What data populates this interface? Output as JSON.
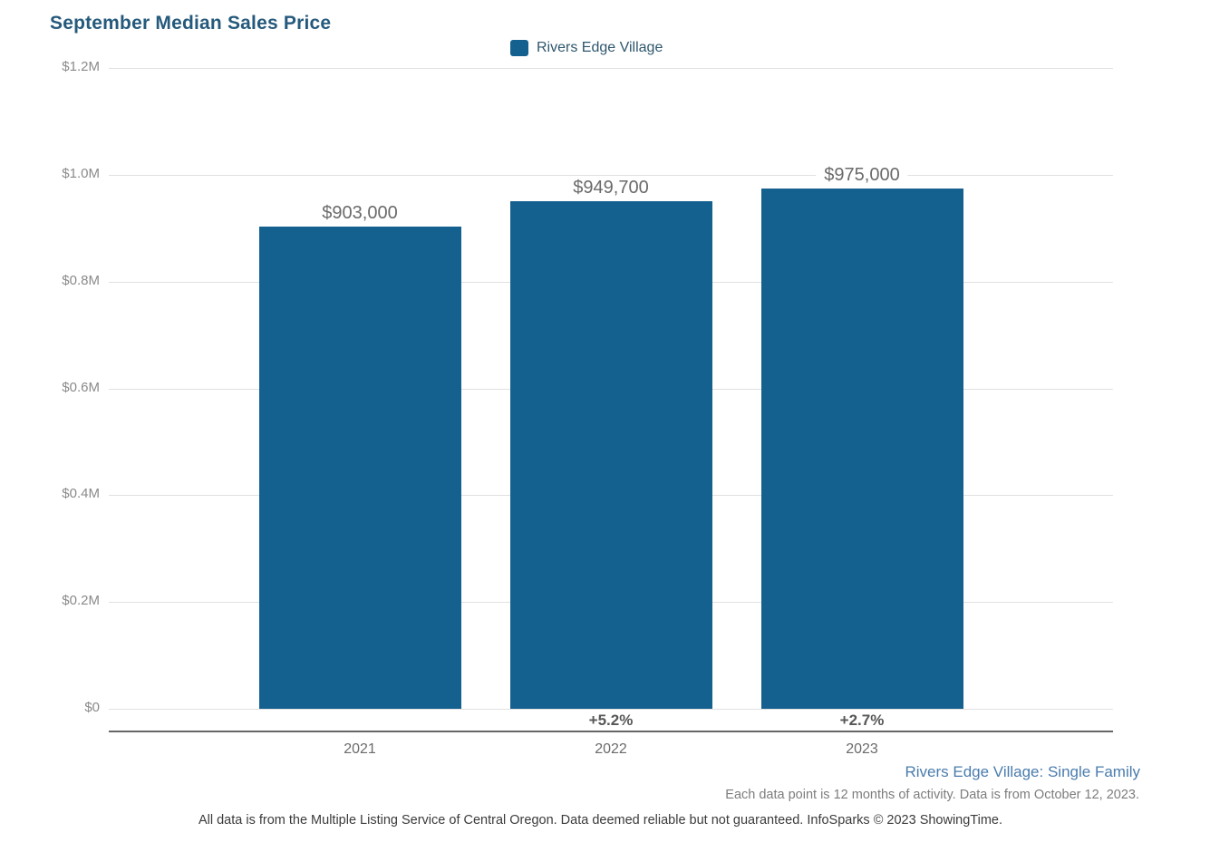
{
  "page": {
    "title": "September Median Sales Price"
  },
  "legend": {
    "label": "Rivers Edge Village",
    "swatch_color": "#14608f"
  },
  "chart_data": {
    "type": "bar",
    "title": "September Median Sales Price",
    "categories": [
      "2021",
      "2022",
      "2023"
    ],
    "series": [
      {
        "name": "Rivers Edge Village",
        "color": "#14608f",
        "values": [
          903000,
          949700,
          975000
        ]
      }
    ],
    "value_labels": [
      "$903,000",
      "$949,700",
      "$975,000"
    ],
    "pct_change_labels": [
      "",
      "+5.2%",
      "+2.7%"
    ],
    "yoy_change_pct": [
      null,
      5.2,
      2.7
    ],
    "ylim": [
      0,
      1200000
    ],
    "ytick_labels": [
      "$0",
      "$0.2M",
      "$0.4M",
      "$0.6M",
      "$0.8M",
      "$1.0M",
      "$1.2M"
    ],
    "xlabel": "",
    "ylabel": "",
    "grid": true,
    "legend_position": "top-center"
  },
  "footer": {
    "series_descriptor": "Rivers Edge Village: Single Family",
    "data_note": "Each data point is 12 months of activity. Data is from October 12, 2023.",
    "disclaimer": "All data is from the Multiple Listing Service of Central Oregon. Data deemed reliable but not guaranteed. InfoSparks © 2023 ShowingTime."
  },
  "colors": {
    "title": "#255a7c",
    "bar": "#14608f",
    "footer_link": "#4a7cad"
  }
}
